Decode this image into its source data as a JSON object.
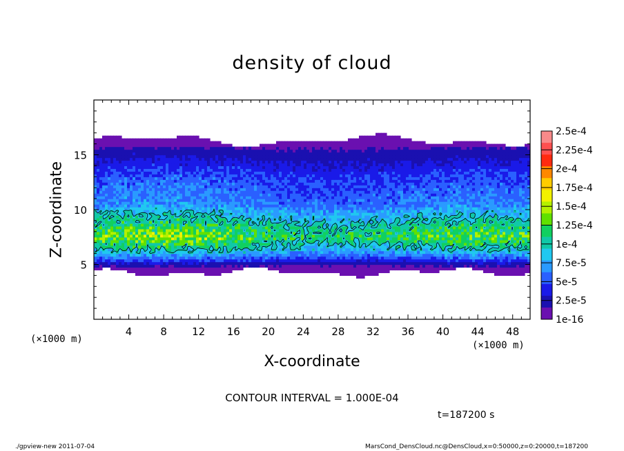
{
  "footer": {
    "left": "./gpview-new   2011-07-04",
    "right": "MarsCond_DensCloud.nc@DensCloud,x=0:50000,z=0:20000,t=187200"
  },
  "chart_data": {
    "type": "heatmap",
    "title": "density of cloud",
    "xlabel": "X-coordinate",
    "ylabel": "Z-coordinate",
    "x_unit_label": "(×1000 m)",
    "x_unit_label_right": "(×1000 m)",
    "xlim": [
      0,
      50
    ],
    "ylim": [
      0,
      20
    ],
    "x_ticks": [
      "4",
      "8",
      "12",
      "16",
      "20",
      "24",
      "28",
      "32",
      "36",
      "40",
      "44",
      "48"
    ],
    "y_ticks": [
      "5",
      "10",
      "15"
    ],
    "contour_text": "CONTOUR INTERVAL = 1.000E-04",
    "time_text": "t=187200 s",
    "colorbar": {
      "labels": [
        "2.5e-4",
        "2.25e-4",
        "2e-4",
        "1.75e-4",
        "1.5e-4",
        "1.25e-4",
        "1e-4",
        "7.5e-5",
        "5e-5",
        "2.5e-5",
        "1e-16"
      ],
      "colors": [
        "#f98a8a",
        "#ff5050",
        "#ff2a10",
        "#ff8800",
        "#ffcc00",
        "#f2f200",
        "#b4f000",
        "#60e000",
        "#10d060",
        "#10c8a8",
        "#20c8f0",
        "#2a9aff",
        "#2a60ff",
        "#1a1ae8",
        "#1a10b0",
        "#6a10b0"
      ]
    },
    "profile": [
      {
        "z": 16.3,
        "value": 0
      },
      {
        "z": 15.5,
        "value": 2e-05
      },
      {
        "z": 13.0,
        "value": 5e-05
      },
      {
        "z": 10.5,
        "value": 6.5e-05
      },
      {
        "z": 9.5,
        "value": 9e-05
      },
      {
        "z": 7.5,
        "value": 0.00013
      },
      {
        "z": 6.3,
        "value": 9e-05
      },
      {
        "z": 5.5,
        "value": 5e-05
      },
      {
        "z": 5.0,
        "value": 2e-05
      },
      {
        "z": 4.3,
        "value": 0
      }
    ]
  }
}
